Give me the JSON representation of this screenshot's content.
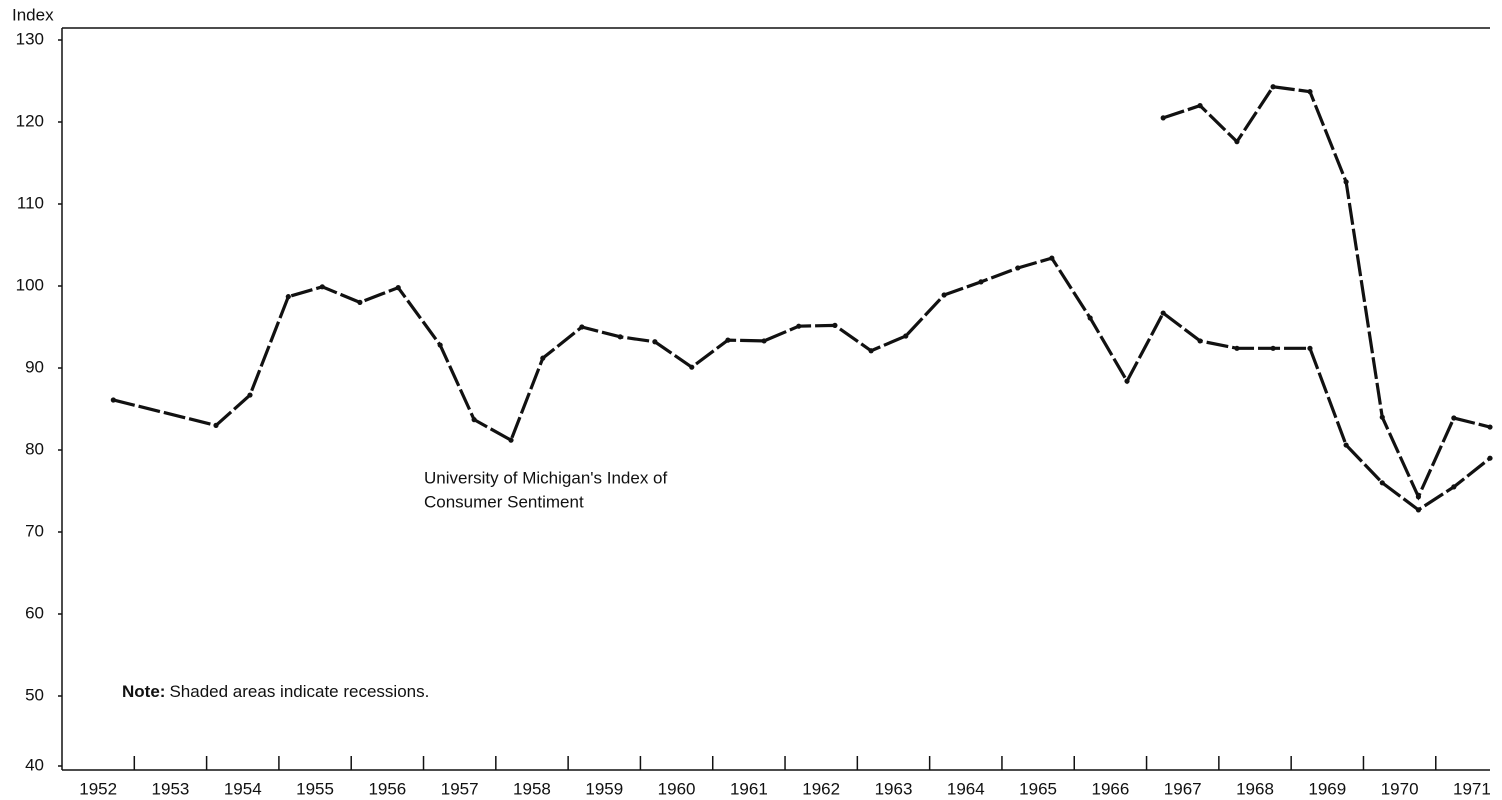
{
  "chart_data": {
    "type": "line",
    "y_axis_label": "Index",
    "annotation": [
      "University of Michigan's Index of",
      "Consumer Sentiment"
    ],
    "note_label": "Note:",
    "note_text": "Shaded areas indicate recessions.",
    "xlim": [
      1952,
      1971.75
    ],
    "xticks": [
      {
        "value": 1952.5,
        "label": "1952"
      },
      {
        "value": 1953.5,
        "label": "1953"
      },
      {
        "value": 1954.5,
        "label": "1954"
      },
      {
        "value": 1955.5,
        "label": "1955"
      },
      {
        "value": 1956.5,
        "label": "1956"
      },
      {
        "value": 1957.5,
        "label": "1957"
      },
      {
        "value": 1958.5,
        "label": "1958"
      },
      {
        "value": 1959.5,
        "label": "1959"
      },
      {
        "value": 1960.5,
        "label": "1960"
      },
      {
        "value": 1961.5,
        "label": "1961"
      },
      {
        "value": 1962.5,
        "label": "1962"
      },
      {
        "value": 1963.5,
        "label": "1963"
      },
      {
        "value": 1964.5,
        "label": "1964"
      },
      {
        "value": 1965.5,
        "label": "1965"
      },
      {
        "value": 1966.5,
        "label": "1966"
      },
      {
        "value": 1967.5,
        "label": "1967"
      },
      {
        "value": 1968.5,
        "label": "1968"
      },
      {
        "value": 1969.5,
        "label": "1969"
      },
      {
        "value": 1970.5,
        "label": "1970"
      },
      {
        "value": 1971.5,
        "label": "1971"
      }
    ],
    "ylim": [
      40,
      130
    ],
    "yticks": [
      40,
      50,
      60,
      70,
      80,
      90,
      100,
      110,
      120,
      130
    ],
    "series": [
      {
        "color": "#111111",
        "x": [
          1952.71,
          1954.13,
          1954.6,
          1955.13,
          1955.6,
          1956.12,
          1956.65,
          1957.23,
          1957.7,
          1958.21,
          1958.65,
          1959.19,
          1959.72,
          1960.2,
          1960.71,
          1961.21,
          1961.71,
          1962.19,
          1962.69,
          1963.19,
          1963.67,
          1964.2,
          1964.71,
          1965.22,
          1965.69,
          1966.22,
          1966.73,
          1967.23,
          1967.74,
          1968.25,
          1968.75,
          1969.26,
          1969.76,
          1970.26,
          1970.76,
          1971.25,
          1971.75
        ],
        "values": [
          86.1,
          83.0,
          86.7,
          98.7,
          99.9,
          98.0,
          99.8,
          92.8,
          83.7,
          81.2,
          91.2,
          95.0,
          93.8,
          93.2,
          90.1,
          93.4,
          93.3,
          95.1,
          95.2,
          92.1,
          93.9,
          98.9,
          100.5,
          102.2,
          103.4,
          96.1,
          88.4,
          96.7,
          93.3,
          92.4,
          92.4,
          92.4,
          80.6,
          76.0,
          72.7,
          75.5,
          79.0
        ]
      },
      {
        "color": "#111111",
        "x": [
          1967.23,
          1967.74,
          1968.25,
          1968.75,
          1969.26,
          1969.76,
          1970.26,
          1970.76,
          1971.25,
          1971.75
        ],
        "values": [
          120.5,
          122.0,
          117.6,
          124.3,
          123.7,
          112.7,
          84.0,
          74.3,
          83.9,
          82.8
        ]
      }
    ]
  }
}
